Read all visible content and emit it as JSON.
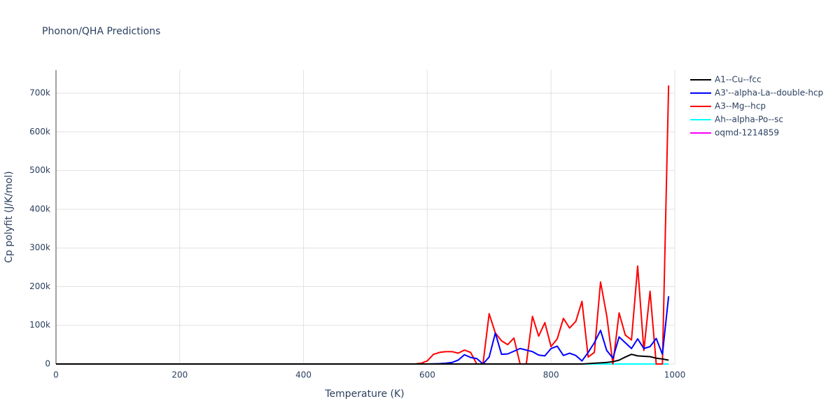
{
  "chart_data": {
    "type": "line",
    "title": "Phonon/QHA Predictions",
    "x_label": "Temperature (K)",
    "y_label": "Cp polyfit (J/K/mol)",
    "x": [
      0,
      10,
      20,
      30,
      40,
      50,
      60,
      70,
      80,
      90,
      100,
      110,
      120,
      130,
      140,
      150,
      160,
      170,
      180,
      190,
      200,
      210,
      220,
      230,
      240,
      250,
      260,
      270,
      280,
      290,
      300,
      310,
      320,
      330,
      340,
      350,
      360,
      370,
      380,
      390,
      400,
      410,
      420,
      430,
      440,
      450,
      460,
      470,
      480,
      490,
      500,
      510,
      520,
      530,
      540,
      550,
      560,
      570,
      580,
      590,
      600,
      610,
      620,
      630,
      640,
      650,
      660,
      670,
      680,
      690,
      700,
      710,
      720,
      730,
      740,
      750,
      760,
      770,
      780,
      790,
      800,
      810,
      820,
      830,
      840,
      850,
      860,
      870,
      880,
      890,
      900,
      910,
      920,
      930,
      940,
      950,
      960,
      970,
      980,
      990
    ],
    "xlim": [
      0,
      1000
    ],
    "xticks": [
      0,
      200,
      400,
      600,
      800,
      1000
    ],
    "ylim": [
      0,
      760000
    ],
    "yticks": [
      0,
      {
        "value": 100000,
        "label": "100k"
      },
      {
        "value": 200000,
        "label": "200k"
      },
      {
        "value": 300000,
        "label": "300k"
      },
      {
        "value": 400000,
        "label": "400k"
      },
      {
        "value": 500000,
        "label": "500k"
      },
      {
        "value": 600000,
        "label": "600k"
      },
      {
        "value": 700000,
        "label": "700k"
      }
    ],
    "grid": true,
    "series": [
      {
        "name": "A1--Cu--fcc",
        "color": "#000000",
        "values": [
          0,
          0,
          0,
          0,
          0,
          0,
          0,
          0,
          0,
          0,
          0,
          0,
          0,
          0,
          0,
          0,
          0,
          0,
          0,
          0,
          0,
          0,
          0,
          0,
          0,
          0,
          0,
          0,
          0,
          0,
          0,
          0,
          0,
          0,
          0,
          0,
          0,
          0,
          0,
          0,
          0,
          0,
          0,
          0,
          0,
          0,
          0,
          0,
          0,
          0,
          0,
          0,
          0,
          0,
          0,
          0,
          0,
          0,
          0,
          0,
          0,
          0,
          0,
          0,
          0,
          0,
          0,
          0,
          0,
          0,
          0,
          0,
          0,
          0,
          0,
          0,
          0,
          0,
          0,
          0,
          0,
          0,
          0,
          0,
          0,
          0,
          1000,
          2000,
          3000,
          4000,
          6000,
          10000,
          18000,
          25000,
          21000,
          20000,
          19000,
          15000,
          13000,
          10000
        ]
      },
      {
        "name": "A3'--alpha-La--double-hcp",
        "color": "#0000ff",
        "values": [
          0,
          0,
          0,
          0,
          0,
          0,
          0,
          0,
          0,
          0,
          0,
          0,
          0,
          0,
          0,
          0,
          0,
          0,
          0,
          0,
          0,
          0,
          0,
          0,
          0,
          0,
          0,
          0,
          0,
          0,
          0,
          0,
          0,
          0,
          0,
          0,
          0,
          0,
          0,
          0,
          0,
          0,
          0,
          0,
          0,
          0,
          0,
          0,
          0,
          0,
          0,
          0,
          0,
          0,
          0,
          0,
          0,
          0,
          0,
          0,
          0,
          500,
          1000,
          2000,
          4000,
          10000,
          24000,
          17000,
          14000,
          0,
          18000,
          80000,
          25000,
          26000,
          33000,
          40000,
          36000,
          32000,
          23000,
          21000,
          40000,
          46000,
          22000,
          28000,
          22000,
          8000,
          30000,
          55000,
          87000,
          35000,
          15000,
          70000,
          55000,
          40000,
          65000,
          40000,
          45000,
          66000,
          25000,
          175000
        ]
      },
      {
        "name": "A3--Mg--hcp",
        "color": "#ff0000",
        "values": [
          0,
          0,
          0,
          0,
          0,
          0,
          0,
          0,
          0,
          0,
          0,
          0,
          0,
          0,
          0,
          0,
          0,
          0,
          0,
          0,
          0,
          0,
          0,
          0,
          0,
          0,
          0,
          0,
          0,
          0,
          0,
          0,
          0,
          0,
          0,
          0,
          0,
          0,
          0,
          0,
          0,
          0,
          0,
          0,
          0,
          0,
          0,
          0,
          0,
          0,
          0,
          0,
          0,
          0,
          0,
          0,
          0,
          0,
          0,
          2000,
          8000,
          25000,
          30000,
          32000,
          32000,
          28000,
          36000,
          30000,
          0,
          0,
          130000,
          80000,
          60000,
          50000,
          67000,
          0,
          0,
          123000,
          72000,
          107000,
          45000,
          65000,
          118000,
          93000,
          110000,
          162000,
          18000,
          30000,
          212000,
          125000,
          0,
          132000,
          75000,
          62000,
          253000,
          35000,
          188000,
          0,
          0,
          720000
        ]
      },
      {
        "name": "Ah--alpha-Po--sc",
        "color": "#00ffff",
        "values": [
          0,
          0,
          0,
          0,
          0,
          0,
          0,
          0,
          0,
          0,
          0,
          0,
          0,
          0,
          0,
          0,
          0,
          0,
          0,
          0,
          0,
          0,
          0,
          0,
          0,
          0,
          0,
          0,
          0,
          0,
          0,
          0,
          0,
          0,
          0,
          0,
          0,
          0,
          0,
          0,
          0,
          0,
          0,
          0,
          0,
          0,
          0,
          0,
          0,
          0,
          0,
          0,
          0,
          0,
          0,
          0,
          0,
          0,
          0,
          0,
          0,
          0,
          0,
          0,
          0,
          0,
          0,
          0,
          0,
          0,
          0,
          0,
          0,
          0,
          0,
          0,
          0,
          0,
          0,
          0,
          0,
          0,
          0,
          0,
          0,
          0,
          0,
          0,
          0,
          0,
          0,
          0,
          0,
          0,
          0,
          0,
          0,
          0,
          0,
          0
        ]
      },
      {
        "name": "oqmd-1214859",
        "color": "#ff00ff",
        "values": [
          0,
          0,
          0,
          0,
          0,
          0,
          0,
          0,
          0,
          0,
          0,
          0,
          0,
          0,
          0,
          0,
          0,
          0,
          0,
          0,
          0,
          0,
          0,
          0,
          0,
          0,
          0,
          0,
          0,
          0,
          0,
          0,
          0,
          0,
          0,
          0,
          0,
          0,
          0,
          0,
          0,
          0,
          0,
          0,
          0,
          0,
          0,
          0,
          0,
          0,
          0,
          0,
          0,
          0,
          0,
          0,
          0,
          0,
          0,
          0,
          0,
          0,
          0,
          0,
          0,
          0,
          0,
          0,
          0,
          0,
          0,
          0,
          0,
          0,
          0,
          0,
          0,
          0,
          0,
          0,
          0,
          0,
          0,
          0,
          0,
          0,
          0,
          0,
          0,
          0,
          0,
          0,
          0,
          0,
          0,
          0,
          0,
          0,
          0,
          0
        ]
      }
    ]
  }
}
